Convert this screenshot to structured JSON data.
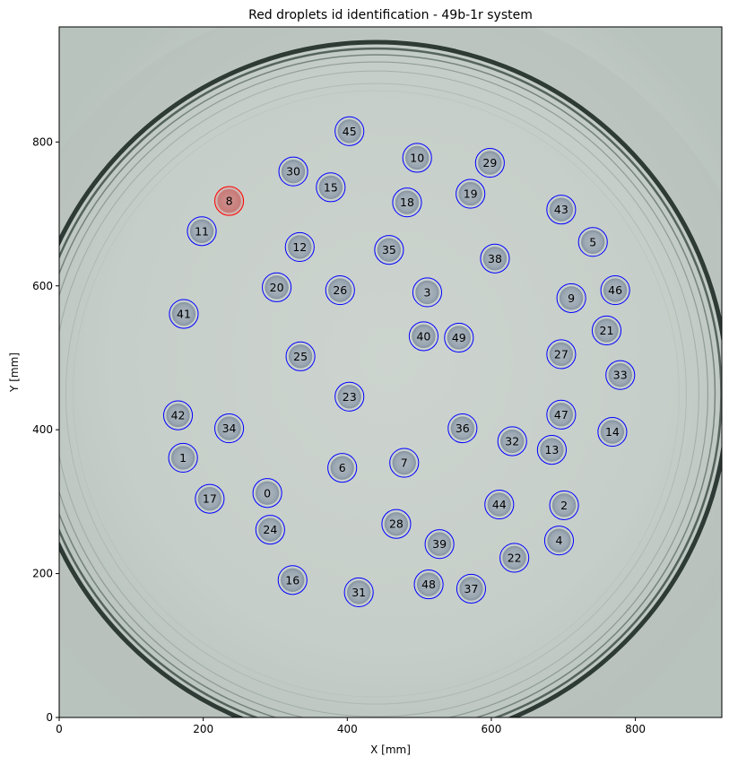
{
  "chart_data": {
    "type": "scatter",
    "title": "Red droplets id identification - 49b-1r system",
    "xlabel": "X [mm]",
    "ylabel": "Y [mm]",
    "xlim": [
      0,
      920
    ],
    "ylim": [
      0,
      960
    ],
    "xticks": [
      0,
      200,
      400,
      600,
      800
    ],
    "yticks": [
      0,
      200,
      400,
      600,
      800
    ],
    "grid": false,
    "marker_radius_data": 20,
    "colors": {
      "blue": "#0000ff",
      "red": "#ff0000",
      "dish_background": "#c9d0cb",
      "dish_ring": "#2d3a34"
    },
    "points": [
      {
        "id": "0",
        "x": 289,
        "y": 312,
        "color": "blue"
      },
      {
        "id": "1",
        "x": 172,
        "y": 361,
        "color": "blue"
      },
      {
        "id": "2",
        "x": 701,
        "y": 295,
        "color": "blue"
      },
      {
        "id": "3",
        "x": 511,
        "y": 591,
        "color": "blue"
      },
      {
        "id": "4",
        "x": 694,
        "y": 246,
        "color": "blue"
      },
      {
        "id": "5",
        "x": 741,
        "y": 661,
        "color": "blue"
      },
      {
        "id": "6",
        "x": 393,
        "y": 347,
        "color": "blue"
      },
      {
        "id": "7",
        "x": 479,
        "y": 354,
        "color": "blue"
      },
      {
        "id": "8",
        "x": 236,
        "y": 718,
        "color": "red"
      },
      {
        "id": "9",
        "x": 711,
        "y": 583,
        "color": "blue"
      },
      {
        "id": "10",
        "x": 497,
        "y": 778,
        "color": "blue"
      },
      {
        "id": "11",
        "x": 198,
        "y": 676,
        "color": "blue"
      },
      {
        "id": "12",
        "x": 334,
        "y": 654,
        "color": "blue"
      },
      {
        "id": "13",
        "x": 684,
        "y": 372,
        "color": "blue"
      },
      {
        "id": "14",
        "x": 768,
        "y": 397,
        "color": "blue"
      },
      {
        "id": "15",
        "x": 377,
        "y": 737,
        "color": "blue"
      },
      {
        "id": "16",
        "x": 324,
        "y": 191,
        "color": "blue"
      },
      {
        "id": "17",
        "x": 209,
        "y": 304,
        "color": "blue"
      },
      {
        "id": "18",
        "x": 483,
        "y": 716,
        "color": "blue"
      },
      {
        "id": "19",
        "x": 571,
        "y": 728,
        "color": "blue"
      },
      {
        "id": "20",
        "x": 302,
        "y": 598,
        "color": "blue"
      },
      {
        "id": "21",
        "x": 760,
        "y": 538,
        "color": "blue"
      },
      {
        "id": "22",
        "x": 632,
        "y": 222,
        "color": "blue"
      },
      {
        "id": "23",
        "x": 403,
        "y": 446,
        "color": "blue"
      },
      {
        "id": "24",
        "x": 293,
        "y": 261,
        "color": "blue"
      },
      {
        "id": "25",
        "x": 335,
        "y": 502,
        "color": "blue"
      },
      {
        "id": "26",
        "x": 390,
        "y": 594,
        "color": "blue"
      },
      {
        "id": "27",
        "x": 697,
        "y": 505,
        "color": "blue"
      },
      {
        "id": "28",
        "x": 468,
        "y": 269,
        "color": "blue"
      },
      {
        "id": "29",
        "x": 598,
        "y": 771,
        "color": "blue"
      },
      {
        "id": "30",
        "x": 325,
        "y": 759,
        "color": "blue"
      },
      {
        "id": "31",
        "x": 416,
        "y": 174,
        "color": "blue"
      },
      {
        "id": "32",
        "x": 629,
        "y": 384,
        "color": "blue"
      },
      {
        "id": "33",
        "x": 779,
        "y": 476,
        "color": "blue"
      },
      {
        "id": "34",
        "x": 236,
        "y": 402,
        "color": "blue"
      },
      {
        "id": "35",
        "x": 458,
        "y": 650,
        "color": "blue"
      },
      {
        "id": "36",
        "x": 560,
        "y": 402,
        "color": "blue"
      },
      {
        "id": "37",
        "x": 572,
        "y": 179,
        "color": "blue"
      },
      {
        "id": "38",
        "x": 605,
        "y": 638,
        "color": "blue"
      },
      {
        "id": "39",
        "x": 528,
        "y": 241,
        "color": "blue"
      },
      {
        "id": "40",
        "x": 506,
        "y": 530,
        "color": "blue"
      },
      {
        "id": "41",
        "x": 173,
        "y": 561,
        "color": "blue"
      },
      {
        "id": "42",
        "x": 165,
        "y": 420,
        "color": "blue"
      },
      {
        "id": "43",
        "x": 697,
        "y": 706,
        "color": "blue"
      },
      {
        "id": "44",
        "x": 611,
        "y": 296,
        "color": "blue"
      },
      {
        "id": "45",
        "x": 403,
        "y": 815,
        "color": "blue"
      },
      {
        "id": "46",
        "x": 772,
        "y": 594,
        "color": "blue"
      },
      {
        "id": "47",
        "x": 697,
        "y": 421,
        "color": "blue"
      },
      {
        "id": "48",
        "x": 513,
        "y": 185,
        "color": "blue"
      },
      {
        "id": "49",
        "x": 555,
        "y": 528,
        "color": "blue"
      }
    ]
  }
}
